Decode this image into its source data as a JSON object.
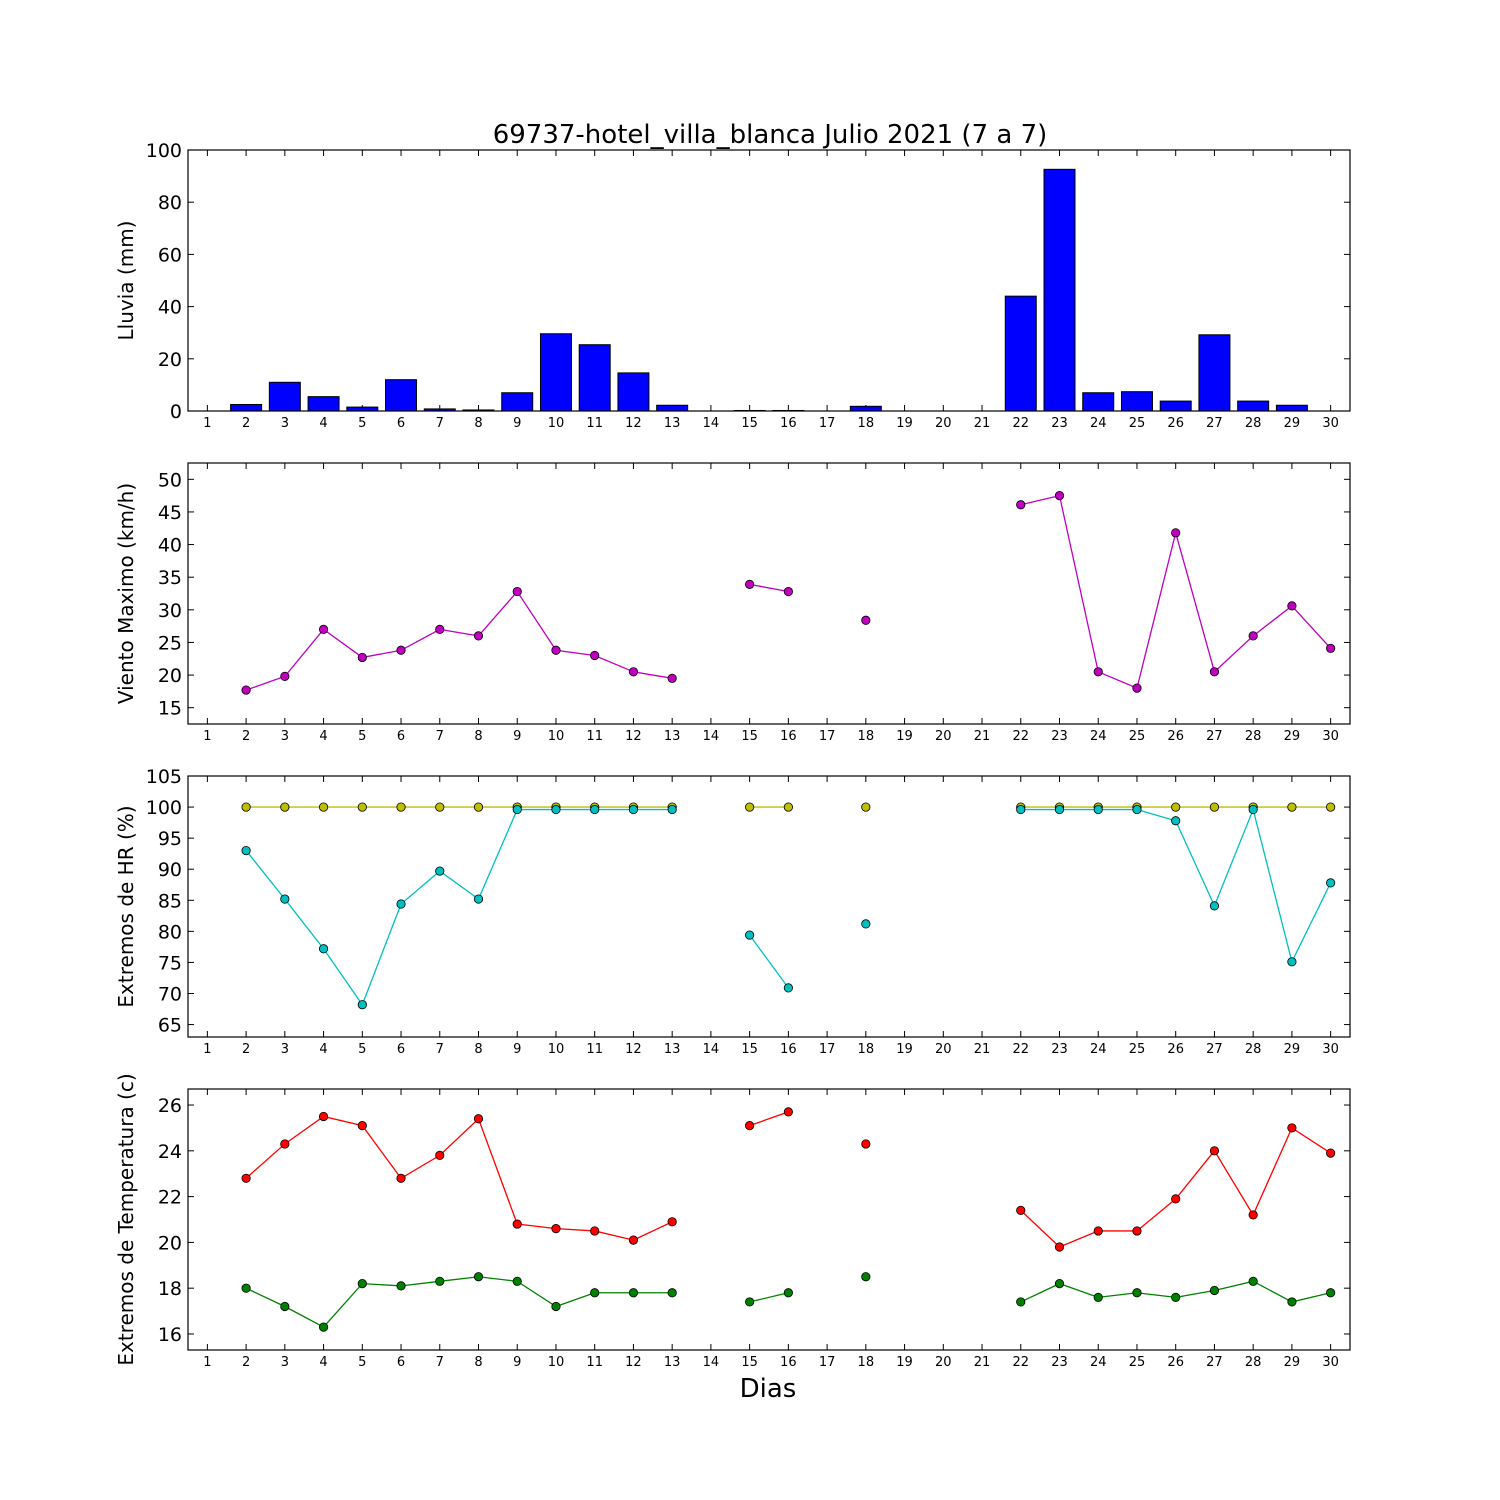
{
  "title": "69737-hotel_villa_blanca Julio 2021  (7 a 7)",
  "xlabel": "Dias",
  "chart_data": [
    {
      "type": "bar",
      "ylabel": "Lluvia (mm)",
      "ylim": [
        0,
        100
      ],
      "yticks": [
        0,
        20,
        40,
        60,
        80,
        100
      ],
      "x_categories": [
        "1",
        "2",
        "3",
        "4",
        "5",
        "6",
        "7",
        "8",
        "9",
        "10",
        "11",
        "12",
        "13",
        "14",
        "15",
        "16",
        "17",
        "18",
        "19",
        "20",
        "21",
        "22",
        "23",
        "24",
        "25",
        "26",
        "27",
        "28",
        "29",
        "30"
      ],
      "series": [
        {
          "color": "#0000ff",
          "values": [
            0,
            2.5,
            11,
            5.5,
            1.5,
            12,
            0.8,
            0.4,
            7,
            29.6,
            25.4,
            14.6,
            2.2,
            0,
            0.2,
            0.2,
            0,
            1.8,
            0,
            0,
            0,
            44,
            92.6,
            7,
            7.4,
            3.8,
            29.2,
            3.8,
            2.2,
            0
          ]
        }
      ]
    },
    {
      "type": "line",
      "ylabel": "Viento Maximo (km/h)",
      "ylim": [
        12.5,
        52.5
      ],
      "yticks": [
        15,
        20,
        25,
        30,
        35,
        40,
        45,
        50
      ],
      "x_categories": [
        "1",
        "2",
        "3",
        "4",
        "5",
        "6",
        "7",
        "8",
        "9",
        "10",
        "11",
        "12",
        "13",
        "14",
        "15",
        "16",
        "17",
        "18",
        "19",
        "20",
        "21",
        "22",
        "23",
        "24",
        "25",
        "26",
        "27",
        "28",
        "29",
        "30"
      ],
      "series": [
        {
          "color": "#bf00bf",
          "values": [
            null,
            17.7,
            19.8,
            27,
            22.7,
            23.8,
            27,
            26,
            32.8,
            23.8,
            23,
            20.5,
            19.5,
            null,
            33.9,
            32.8,
            null,
            28.4,
            null,
            null,
            null,
            46.1,
            47.5,
            20.5,
            18,
            41.8,
            20.5,
            26,
            30.6,
            24.1
          ]
        }
      ]
    },
    {
      "type": "line",
      "ylabel": "Extremos de HR (%)",
      "ylim": [
        63,
        105
      ],
      "yticks": [
        65,
        70,
        75,
        80,
        85,
        90,
        95,
        100,
        105
      ],
      "x_categories": [
        "1",
        "2",
        "3",
        "4",
        "5",
        "6",
        "7",
        "8",
        "9",
        "10",
        "11",
        "12",
        "13",
        "14",
        "15",
        "16",
        "17",
        "18",
        "19",
        "20",
        "21",
        "22",
        "23",
        "24",
        "25",
        "26",
        "27",
        "28",
        "29",
        "30"
      ],
      "series": [
        {
          "color": "#bfbf00",
          "values": [
            null,
            100,
            100,
            100,
            100,
            100,
            100,
            100,
            100,
            100,
            100,
            100,
            100,
            null,
            100,
            100,
            null,
            100,
            null,
            null,
            null,
            100,
            100,
            100,
            100,
            100,
            100,
            100,
            100,
            100
          ]
        },
        {
          "color": "#00bfbf",
          "values": [
            null,
            93,
            85.2,
            77.2,
            68.2,
            84.4,
            89.7,
            85.2,
            99.6,
            99.6,
            99.6,
            99.6,
            99.6,
            null,
            79.4,
            70.9,
            null,
            81.2,
            null,
            null,
            null,
            99.6,
            99.6,
            99.6,
            99.6,
            97.8,
            84.1,
            99.6,
            75.1,
            87.8
          ]
        }
      ]
    },
    {
      "type": "line",
      "ylabel": "Extremos de Temperatura (c)",
      "ylim": [
        15.3,
        26.7
      ],
      "yticks": [
        16,
        18,
        20,
        22,
        24,
        26
      ],
      "x_categories": [
        "1",
        "2",
        "3",
        "4",
        "5",
        "6",
        "7",
        "8",
        "9",
        "10",
        "11",
        "12",
        "13",
        "14",
        "15",
        "16",
        "17",
        "18",
        "19",
        "20",
        "21",
        "22",
        "23",
        "24",
        "25",
        "26",
        "27",
        "28",
        "29",
        "30"
      ],
      "series": [
        {
          "color": "#ff0000",
          "values": [
            null,
            22.8,
            24.3,
            25.5,
            25.1,
            22.8,
            23.8,
            25.4,
            20.8,
            20.6,
            20.5,
            20.1,
            20.9,
            null,
            25.1,
            25.7,
            null,
            24.3,
            null,
            null,
            null,
            21.4,
            19.8,
            20.5,
            20.5,
            21.9,
            24,
            21.2,
            25,
            23.9
          ]
        },
        {
          "color": "#008000",
          "values": [
            null,
            18,
            17.2,
            16.3,
            18.2,
            18.1,
            18.3,
            18.5,
            18.3,
            17.2,
            17.8,
            17.8,
            17.8,
            null,
            17.4,
            17.8,
            null,
            18.5,
            null,
            null,
            null,
            17.4,
            18.2,
            17.6,
            17.8,
            17.6,
            17.9,
            18.3,
            17.4,
            17.8
          ]
        }
      ]
    }
  ]
}
